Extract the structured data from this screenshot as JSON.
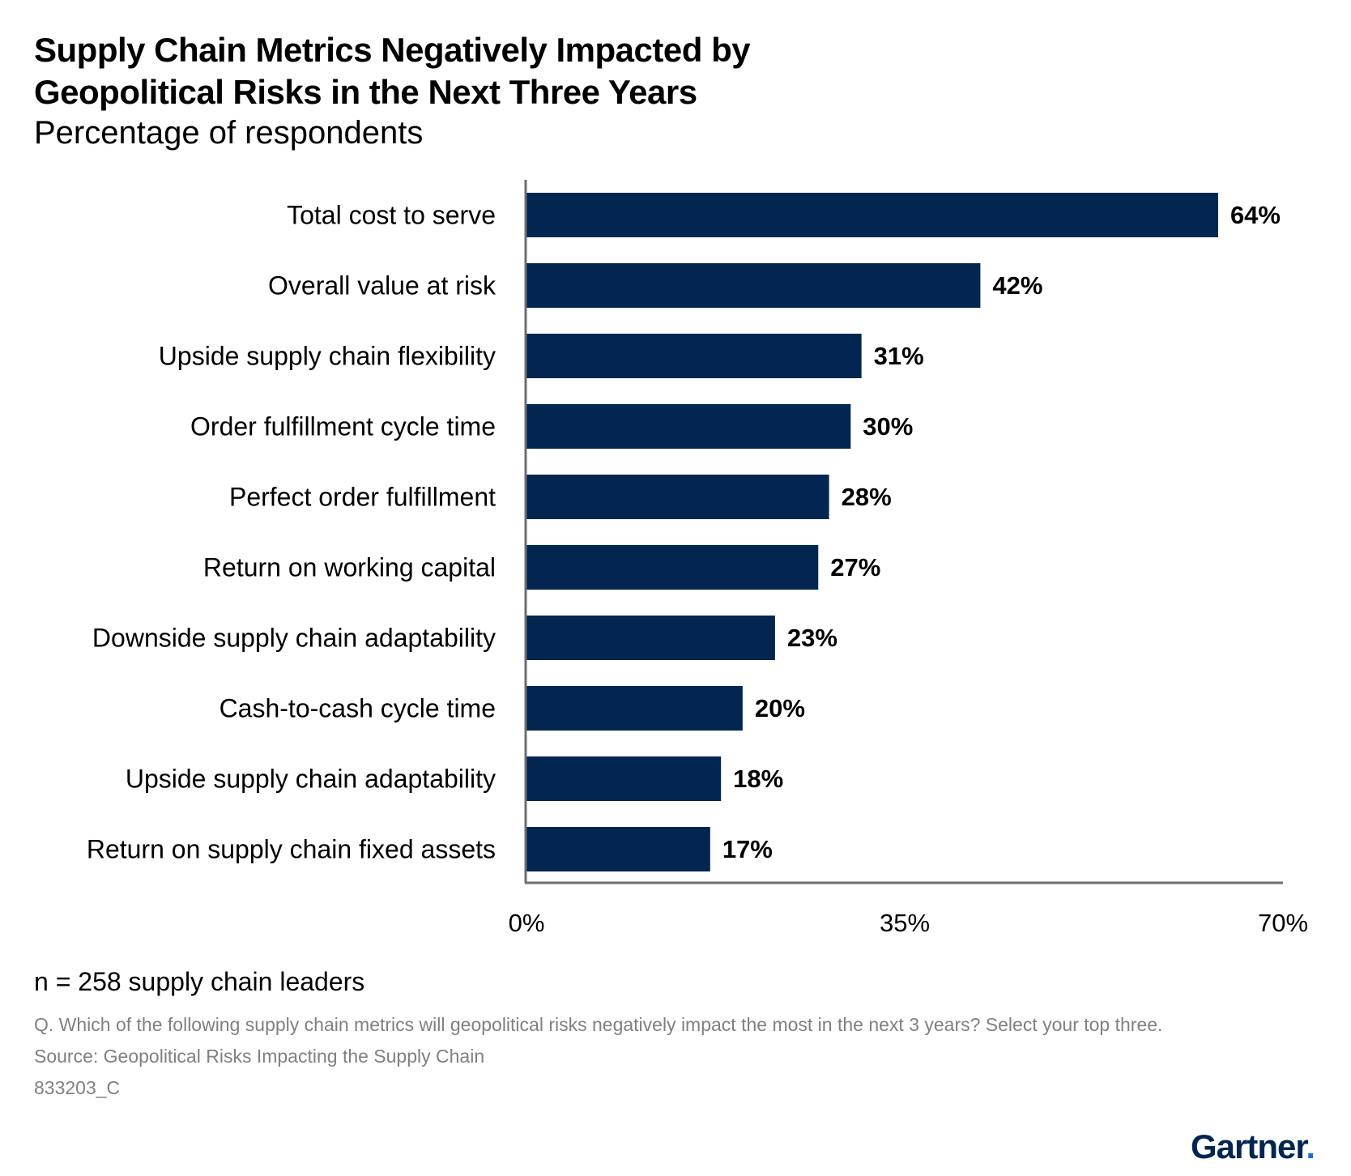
{
  "chart_data": {
    "type": "bar",
    "orientation": "horizontal",
    "title": "Supply Chain Metrics Negatively Impacted by Geopolitical Risks in the Next Three Years",
    "subtitle": "Percentage of respondents",
    "categories": [
      "Total cost to serve",
      "Overall value at risk",
      "Upside supply chain flexibility",
      "Order fulfillment cycle time",
      "Perfect order fulfillment",
      "Return on working capital",
      "Downside supply chain adaptability",
      "Cash-to-cash cycle time",
      "Upside supply chain adaptability",
      "Return on supply chain fixed assets"
    ],
    "values": [
      64,
      42,
      31,
      30,
      28,
      27,
      23,
      20,
      18,
      17
    ],
    "value_labels": [
      "64%",
      "42%",
      "31%",
      "30%",
      "28%",
      "27%",
      "23%",
      "20%",
      "18%",
      "17%"
    ],
    "xlim": [
      0,
      70
    ],
    "xticks": [
      0,
      35,
      70
    ],
    "xtick_labels": [
      "0%",
      "35%",
      "70%"
    ],
    "bar_color": "#022650",
    "grid": false,
    "legend": false
  },
  "note": "n = 258 supply chain leaders",
  "question": "Q. Which of the following supply chain metrics will geopolitical risks negatively impact the most in the next 3 years? Select your top three.",
  "source": "Source: Geopolitical Risks Impacting the Supply Chain",
  "doc_id": "833203_C",
  "logo": {
    "text": "Gartner",
    "mark": ".",
    "color": "#022650",
    "accent_color": "#1e6fd0"
  }
}
